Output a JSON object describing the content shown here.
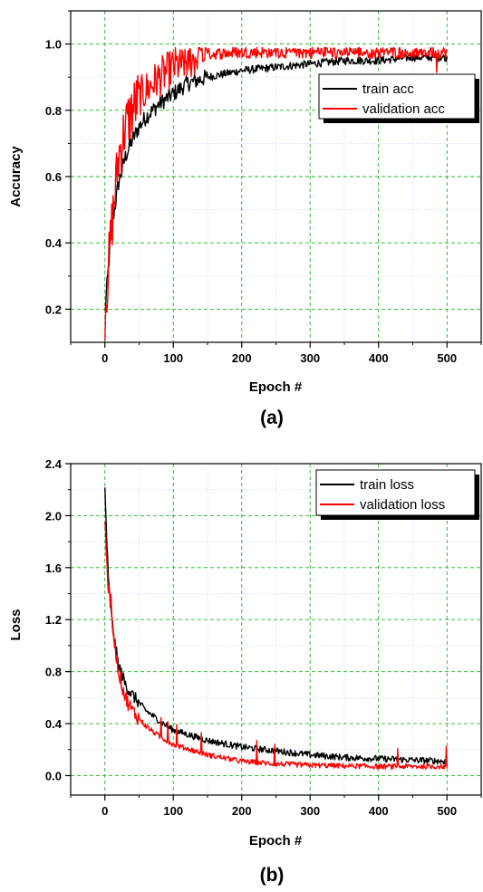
{
  "chart_data": [
    {
      "type": "line",
      "caption": "(a)",
      "xlabel": "Epoch #",
      "ylabel": "Accuracy",
      "xlim": [
        -50,
        550
      ],
      "ylim": [
        0.1,
        1.1
      ],
      "xticks": [
        0,
        100,
        200,
        300,
        400,
        500
      ],
      "yticks": [
        0.2,
        0.4,
        0.6,
        0.8,
        1.0
      ],
      "ytick_labels": [
        "0.2",
        "0.4",
        "0.6",
        "0.8",
        "1.0"
      ],
      "grid": true,
      "legend_position": "top-right",
      "series": [
        {
          "name": "train acc",
          "color": "#000000",
          "x": [
            0,
            10,
            20,
            30,
            40,
            50,
            60,
            70,
            80,
            100,
            120,
            150,
            200,
            250,
            300,
            350,
            400,
            450,
            500
          ],
          "y": [
            0.19,
            0.45,
            0.58,
            0.66,
            0.71,
            0.75,
            0.78,
            0.8,
            0.82,
            0.85,
            0.88,
            0.9,
            0.92,
            0.93,
            0.94,
            0.95,
            0.95,
            0.96,
            0.96
          ]
        },
        {
          "name": "validation acc",
          "color": "#ff0000",
          "x": [
            0,
            10,
            20,
            30,
            40,
            50,
            60,
            70,
            80,
            100,
            120,
            150,
            200,
            250,
            300,
            350,
            400,
            450,
            500
          ],
          "y": [
            0.19,
            0.45,
            0.66,
            0.75,
            0.8,
            0.84,
            0.86,
            0.88,
            0.9,
            0.93,
            0.95,
            0.97,
            0.975,
            0.975,
            0.975,
            0.975,
            0.975,
            0.975,
            0.975
          ]
        }
      ]
    },
    {
      "type": "line",
      "caption": "(b)",
      "xlabel": "Epoch #",
      "ylabel": "Loss",
      "xlim": [
        -50,
        550
      ],
      "ylim": [
        -0.15,
        2.4
      ],
      "xticks": [
        0,
        100,
        200,
        300,
        400,
        500
      ],
      "yticks": [
        0.0,
        0.4,
        0.8,
        1.2,
        1.6,
        2.0,
        2.4
      ],
      "ytick_labels": [
        "0.0",
        "0.4",
        "0.8",
        "1.2",
        "1.6",
        "2.0",
        "2.4"
      ],
      "grid": true,
      "legend_position": "top-right",
      "series": [
        {
          "name": "train loss",
          "color": "#000000",
          "x": [
            0,
            5,
            10,
            15,
            20,
            30,
            40,
            50,
            60,
            80,
            100,
            150,
            200,
            250,
            300,
            350,
            400,
            450,
            500
          ],
          "y": [
            2.2,
            1.5,
            1.2,
            1.0,
            0.85,
            0.7,
            0.62,
            0.56,
            0.5,
            0.42,
            0.35,
            0.27,
            0.22,
            0.19,
            0.16,
            0.14,
            0.13,
            0.12,
            0.11
          ]
        },
        {
          "name": "validation loss",
          "color": "#ff0000",
          "x": [
            0,
            5,
            10,
            15,
            20,
            30,
            40,
            50,
            60,
            80,
            100,
            150,
            200,
            250,
            300,
            350,
            400,
            450,
            500
          ],
          "y": [
            1.95,
            1.45,
            1.2,
            1.0,
            0.8,
            0.6,
            0.5,
            0.44,
            0.38,
            0.3,
            0.24,
            0.16,
            0.11,
            0.09,
            0.08,
            0.075,
            0.07,
            0.07,
            0.07
          ]
        }
      ]
    }
  ]
}
